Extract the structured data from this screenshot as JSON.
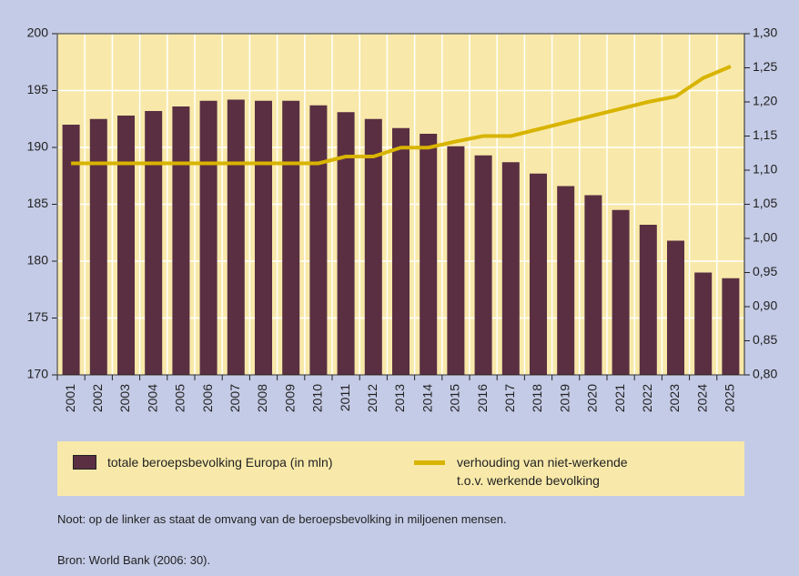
{
  "chart_data": {
    "type": "bar_line",
    "categories": [
      "2001",
      "2002",
      "2003",
      "2004",
      "2005",
      "2006",
      "2007",
      "2008",
      "2009",
      "2010",
      "2011",
      "2012",
      "2013",
      "2014",
      "2015",
      "2016",
      "2017",
      "2018",
      "2019",
      "2020",
      "2021",
      "2022",
      "2023",
      "2024",
      "2025"
    ],
    "series": [
      {
        "name": "totale beroepsbevolking Europa (in mln)",
        "color": "#5a2f42",
        "type": "bar",
        "values": [
          192,
          192.5,
          192.8,
          193.2,
          193.6,
          194.1,
          194.2,
          194.1,
          194.1,
          193.7,
          193.1,
          192.5,
          191.7,
          191.2,
          190.1,
          189.3,
          188.7,
          187.7,
          186.6,
          185.8,
          184.5,
          183.2,
          181.8,
          179.0,
          178.5
        ]
      },
      {
        "name": "verhouding van niet-werkende t.o.v. werkende bevolking",
        "color": "#d8b400",
        "type": "line",
        "axis": "y2",
        "values": [
          1.11,
          1.11,
          1.11,
          1.11,
          1.11,
          1.11,
          1.11,
          1.11,
          1.11,
          1.11,
          1.12,
          1.12,
          1.133,
          1.133,
          1.142,
          1.15,
          1.15,
          1.16,
          1.17,
          1.18,
          1.19,
          1.2,
          1.208,
          1.235,
          1.252
        ]
      }
    ],
    "ylim": [
      170,
      200
    ],
    "yticks": [
      170,
      175,
      180,
      185,
      190,
      195,
      200
    ],
    "y2lim": [
      0.8,
      1.3
    ],
    "y2ticks": [
      {
        "value": 0.8,
        "label": "0,80"
      },
      {
        "value": 0.85,
        "label": "0,85"
      },
      {
        "value": 0.9,
        "label": "0,90"
      },
      {
        "value": 0.95,
        "label": "0,95"
      },
      {
        "value": 1.0,
        "label": "1,00"
      },
      {
        "value": 1.05,
        "label": "1,05"
      },
      {
        "value": 1.1,
        "label": "1,10"
      },
      {
        "value": 1.15,
        "label": "1,15"
      },
      {
        "value": 1.2,
        "label": "1,20"
      },
      {
        "value": 1.25,
        "label": "1,25"
      },
      {
        "value": 1.3,
        "label": "1,30"
      }
    ],
    "grid": true,
    "note": "Noot: op de linker as staat de omvang van de beroepsbevolking in miljoenen mensen.",
    "source": "Bron: World Bank (2006: 30)."
  }
}
